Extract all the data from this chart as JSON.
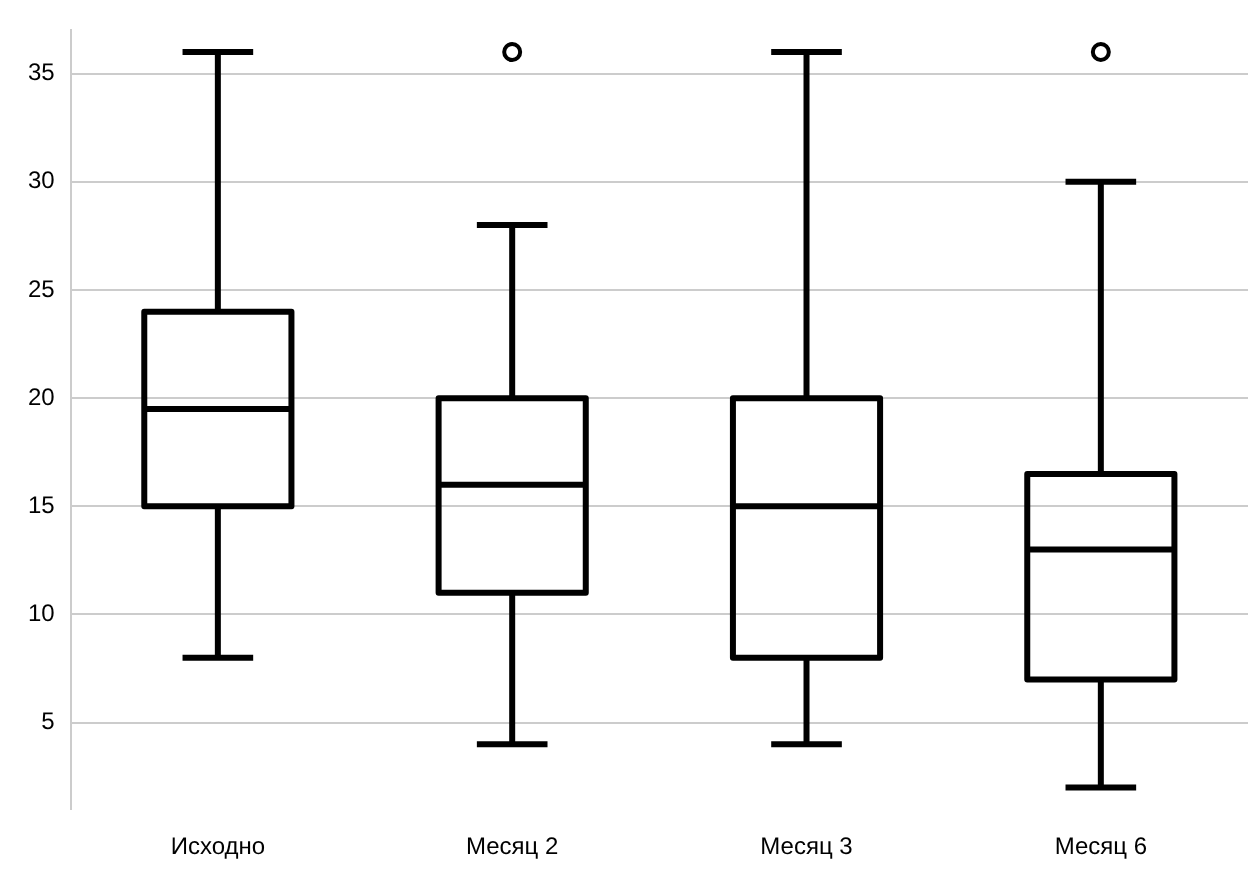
{
  "chart_data": {
    "type": "box",
    "categories": [
      "Исходно",
      "Месяц 2",
      "Месяц 3",
      "Месяц 6"
    ],
    "boxes": [
      {
        "low": 8,
        "q1": 15,
        "median": 19.5,
        "q3": 24,
        "high": 36
      },
      {
        "low": 4,
        "q1": 11,
        "median": 16,
        "q3": 20,
        "high": 28,
        "outliers": [
          36
        ]
      },
      {
        "low": 4,
        "q1": 8,
        "median": 15,
        "q3": 20,
        "high": 36
      },
      {
        "low": 2,
        "q1": 7,
        "median": 13,
        "q3": 16.5,
        "high": 30,
        "outliers": [
          36
        ]
      }
    ],
    "color": "#000000",
    "ylim": [
      1,
      37
    ],
    "yticks": [
      5,
      10,
      15,
      20,
      25,
      30,
      35
    ],
    "grid": "y",
    "legend": false
  }
}
